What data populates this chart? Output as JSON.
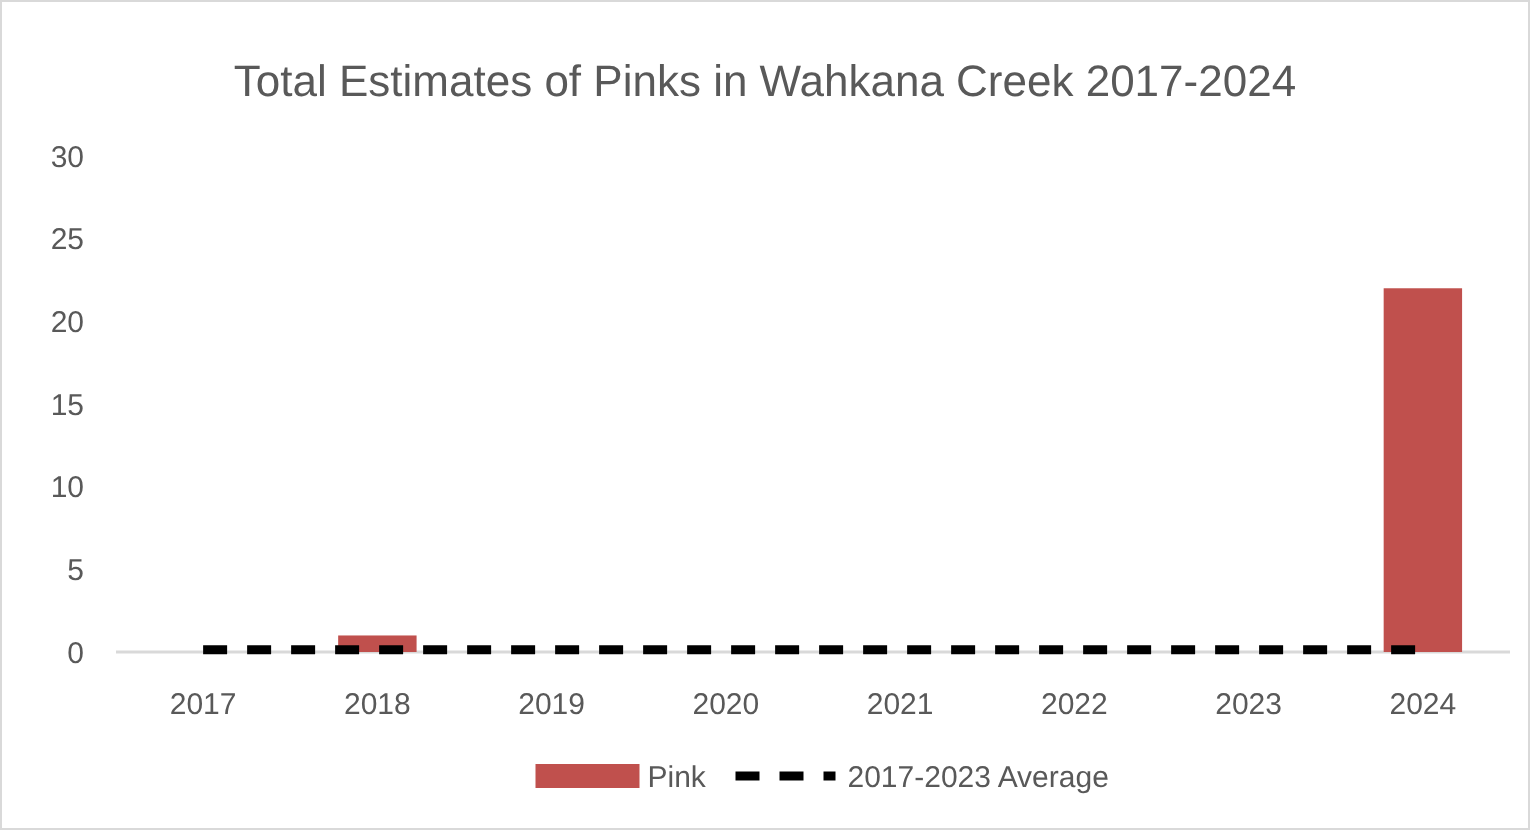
{
  "chart_data": {
    "type": "bar",
    "title": "Total Estimates of Pinks in Wahkana Creek 2017-2024",
    "categories": [
      "2017",
      "2018",
      "2019",
      "2020",
      "2021",
      "2022",
      "2023",
      "2024"
    ],
    "series": [
      {
        "name": "Pink",
        "color": "#c0504d",
        "values": [
          0,
          1,
          0,
          0,
          0,
          0,
          0,
          22
        ]
      },
      {
        "name": "2017-2023 Average",
        "type": "line",
        "color": "#000000",
        "line_style": "dashed",
        "values": [
          0.14,
          0.14,
          0.14,
          0.14,
          0.14,
          0.14,
          0.14,
          0.14
        ]
      }
    ],
    "ylim": [
      0,
      30
    ],
    "yticks": [
      0,
      5,
      10,
      15,
      20,
      25,
      30
    ],
    "grid": false,
    "legend": "bottom",
    "marker": "none"
  }
}
